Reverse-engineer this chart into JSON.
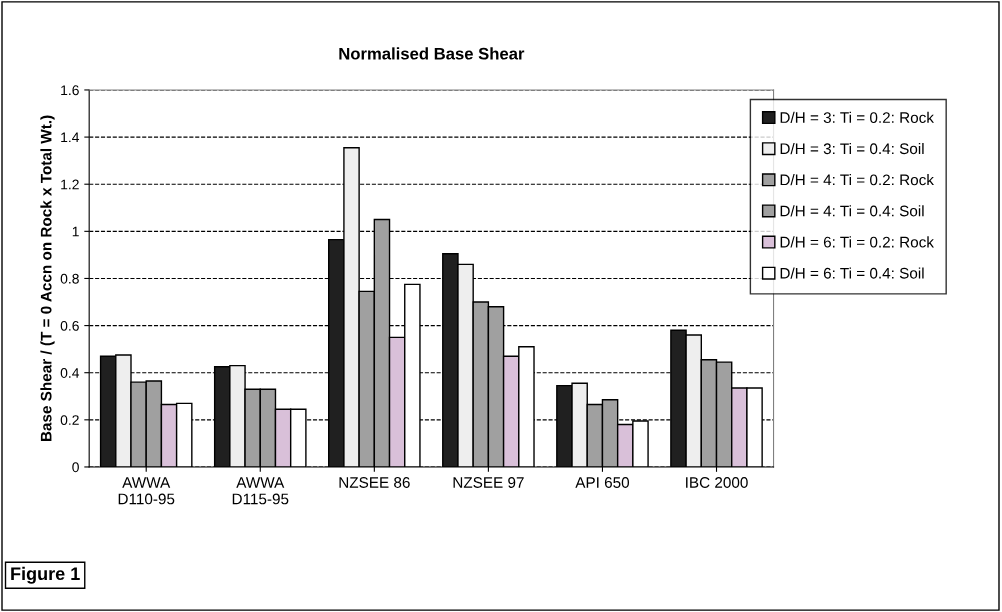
{
  "chart_data": {
    "type": "bar",
    "title": "Normalised Base Shear",
    "ylabel": "Base Shear / (T = 0 Accn on Rock x Total Wt.)",
    "categories": [
      "AWWA\nD110-95",
      "AWWA\nD115-95",
      "NZSEE 86",
      "NZSEE 97",
      "API 650",
      "IBC 2000"
    ],
    "series": [
      {
        "name": "D/H = 3: Ti = 0.2: Rock",
        "color": "#202020",
        "values": [
          0.47,
          0.425,
          0.965,
          0.905,
          0.345,
          0.58
        ]
      },
      {
        "name": "D/H = 3: Ti = 0.4: Soil",
        "color": "#eeeeee",
        "values": [
          0.475,
          0.43,
          1.355,
          0.86,
          0.355,
          0.56
        ]
      },
      {
        "name": "D/H = 4: Ti = 0.2: Rock",
        "color": "#a0a0a0",
        "values": [
          0.36,
          0.33,
          0.745,
          0.7,
          0.265,
          0.455
        ]
      },
      {
        "name": "D/H = 4: Ti = 0.4: Soil",
        "color": "#a0a0a0",
        "values": [
          0.365,
          0.33,
          1.05,
          0.68,
          0.285,
          0.445
        ]
      },
      {
        "name": "D/H = 6: Ti = 0.2: Rock",
        "color": "#d9c0d9",
        "values": [
          0.265,
          0.245,
          0.55,
          0.47,
          0.18,
          0.335
        ]
      },
      {
        "name": "D/H = 6: Ti = 0.4: Soil",
        "color": "#ffffff",
        "values": [
          0.27,
          0.245,
          0.775,
          0.51,
          0.195,
          0.335
        ]
      }
    ],
    "ylim": [
      0,
      1.6
    ],
    "yticks": [
      0,
      0.2,
      0.4,
      0.6,
      0.8,
      1,
      1.2,
      1.4,
      1.6
    ],
    "grid": "y",
    "legend": "right",
    "annotations": [
      "Figure 1"
    ]
  }
}
